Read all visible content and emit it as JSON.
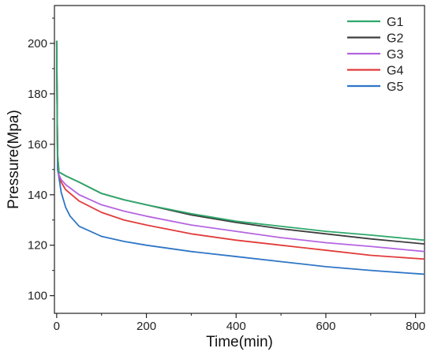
{
  "chart_data": {
    "type": "line",
    "title": "",
    "xlabel": "Time(min)",
    "ylabel": "Pressure(Mpa)",
    "xlim": [
      -5,
      820
    ],
    "ylim": [
      93,
      215
    ],
    "x_ticks": [
      0,
      200,
      400,
      600,
      800
    ],
    "y_ticks": [
      100,
      120,
      140,
      160,
      180,
      200
    ],
    "legend_position": "top-right",
    "grid": false,
    "series": [
      {
        "name": "G1",
        "color": "#2ea86b",
        "x": [
          0,
          1,
          2,
          5,
          10,
          20,
          50,
          100,
          150,
          200,
          300,
          400,
          500,
          600,
          700,
          820
        ],
        "y": [
          201,
          175,
          156,
          149,
          148.5,
          147.5,
          145,
          140.5,
          138,
          136,
          132.5,
          129.5,
          127.5,
          125.5,
          124,
          122
        ]
      },
      {
        "name": "G2",
        "color": "#3d3d3d",
        "x": [
          0,
          1,
          2,
          5,
          10,
          20,
          50,
          100,
          150,
          200,
          300,
          400,
          500,
          600,
          700,
          820
        ],
        "y": [
          201,
          175,
          156,
          149,
          148.5,
          147.5,
          145,
          140.5,
          138,
          136,
          132,
          129,
          126.5,
          124.5,
          122.5,
          120.5
        ]
      },
      {
        "name": "G3",
        "color": "#b565e0",
        "x": [
          0,
          1,
          2,
          5,
          10,
          20,
          50,
          100,
          150,
          200,
          300,
          400,
          500,
          600,
          700,
          820
        ],
        "y": [
          201,
          175,
          155,
          148,
          146,
          144,
          140,
          136,
          133.5,
          131.5,
          128,
          125.5,
          123,
          121,
          119.5,
          117.5
        ]
      },
      {
        "name": "G4",
        "color": "#e23b3b",
        "x": [
          0,
          1,
          2,
          5,
          10,
          20,
          50,
          100,
          150,
          200,
          300,
          400,
          500,
          600,
          700,
          820
        ],
        "y": [
          201,
          175,
          155,
          148,
          145,
          142,
          137.5,
          133,
          130,
          128,
          124.5,
          122,
          120,
          118,
          116,
          114.5
        ]
      },
      {
        "name": "G5",
        "color": "#2f75c6",
        "x": [
          0,
          1,
          2,
          5,
          10,
          20,
          30,
          50,
          100,
          150,
          200,
          300,
          400,
          500,
          600,
          700,
          820
        ],
        "y": [
          201,
          170,
          150,
          147,
          141,
          135,
          131.5,
          127.5,
          123.5,
          121.5,
          120,
          117.5,
          115.5,
          113.5,
          111.5,
          110,
          108.5
        ]
      }
    ]
  }
}
